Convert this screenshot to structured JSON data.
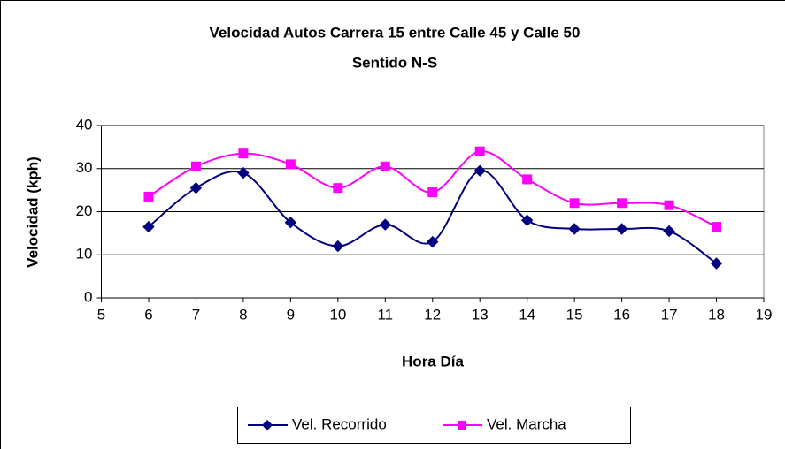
{
  "chart_data": {
    "type": "line",
    "title": "Velocidad Autos Carrera 15 entre Calle 45 y Calle 50",
    "subtitle": "Sentido N-S",
    "x_label": "Hora Día",
    "y_label": "Velocidad (kph)",
    "x": [
      6,
      7,
      8,
      9,
      10,
      11,
      12,
      13,
      14,
      15,
      16,
      17,
      18
    ],
    "series": [
      {
        "name": "Vel. Recorrido",
        "color": "#000080",
        "marker": "diamond",
        "values": [
          16.5,
          25.5,
          29,
          17.5,
          12,
          17,
          13,
          29.5,
          18,
          16,
          16,
          15.5,
          8
        ]
      },
      {
        "name": "Vel. Marcha",
        "color": "#ff00ff",
        "marker": "square",
        "values": [
          23.5,
          30.5,
          33.5,
          31,
          25.5,
          30.5,
          24.5,
          34,
          27.5,
          22,
          22,
          21.5,
          16.5
        ]
      }
    ],
    "xlim": [
      5,
      19
    ],
    "xticks": [
      5,
      6,
      7,
      8,
      9,
      10,
      11,
      12,
      13,
      14,
      15,
      16,
      17,
      18,
      19
    ],
    "ylim": [
      0,
      40
    ],
    "yticks": [
      0,
      10,
      20,
      30,
      40
    ],
    "grid": true,
    "smooth": true,
    "legend": "bottom"
  }
}
